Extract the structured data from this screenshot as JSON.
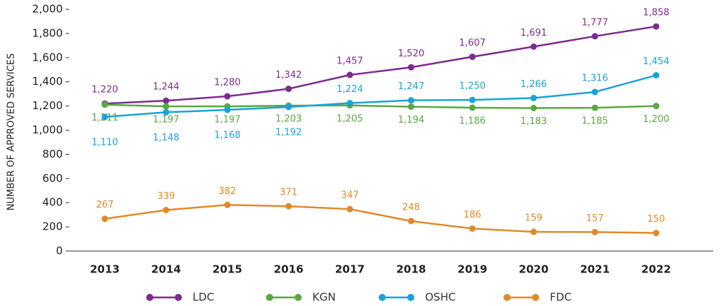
{
  "chart_data": {
    "type": "line",
    "y_label": "NUMBER OF APPROVED SERVICES",
    "categories": [
      "2013",
      "2014",
      "2015",
      "2016",
      "2017",
      "2018",
      "2019",
      "2020",
      "2021",
      "2022"
    ],
    "series": [
      {
        "name": "LDC",
        "color": "#7b2d8e",
        "values": [
          1220,
          1244,
          1280,
          1342,
          1457,
          1520,
          1607,
          1691,
          1777,
          1858
        ],
        "value_labels": [
          "1,220",
          "1,244",
          "1,280",
          "1,342",
          "1,457",
          "1,520",
          "1,607",
          "1,691",
          "1,777",
          "1,858"
        ]
      },
      {
        "name": "KGN",
        "color": "#5aa843",
        "values": [
          1211,
          1197,
          1197,
          1203,
          1205,
          1194,
          1186,
          1183,
          1185,
          1200
        ],
        "value_labels": [
          "1,211",
          "1,197",
          "1,197",
          "1,203",
          "1,205",
          "1,194",
          "1,186",
          "1,183",
          "1,185",
          "1,200"
        ]
      },
      {
        "name": "OSHC",
        "color": "#1aa3d8",
        "values": [
          1110,
          1148,
          1168,
          1192,
          1224,
          1247,
          1250,
          1266,
          1316,
          1454
        ],
        "value_labels": [
          "1,110",
          "1,148",
          "1,168",
          "1,192",
          "1,224",
          "1,247",
          "1,250",
          "1,266",
          "1,316",
          "1,454"
        ]
      },
      {
        "name": "FDC",
        "color": "#e08a2b",
        "values": [
          267,
          339,
          382,
          371,
          347,
          248,
          186,
          159,
          157,
          150
        ]
      }
    ],
    "ylim": [
      0,
      2000
    ],
    "yticks": [
      0,
      200,
      400,
      600,
      800,
      {
        "value": 1000,
        "label": "1,000"
      },
      {
        "value": 1200,
        "label": "1,200"
      },
      {
        "value": 1400,
        "label": "1,400"
      },
      {
        "value": 1600,
        "label": "1,600"
      },
      {
        "value": 1800,
        "label": "1,800"
      },
      {
        "value": 2000,
        "label": "2,000"
      }
    ],
    "legend": "bottom"
  }
}
